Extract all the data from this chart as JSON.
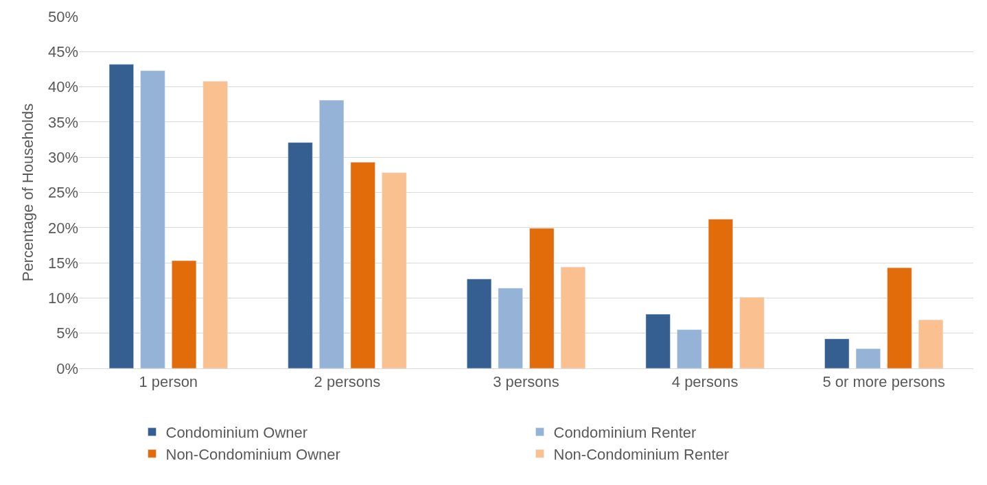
{
  "chart_data": {
    "type": "bar",
    "ylabel": "Percentage of Households",
    "categories": [
      "1 person",
      "2 persons",
      "3 persons",
      "4 persons",
      "5 or more persons"
    ],
    "series": [
      {
        "name": "Condominium Owner",
        "color": "#365f91",
        "values": [
          43.2,
          32.1,
          12.7,
          7.7,
          4.2
        ]
      },
      {
        "name": "Condominium Renter",
        "color": "#95b3d7",
        "values": [
          42.3,
          38.1,
          11.4,
          5.5,
          2.8
        ]
      },
      {
        "name": "Non-Condominium Owner",
        "color": "#e36c0a",
        "values": [
          15.3,
          29.3,
          19.9,
          21.2,
          14.3
        ]
      },
      {
        "name": "Non-Condominium Renter",
        "color": "#fac090",
        "values": [
          40.8,
          27.8,
          14.4,
          10.1,
          6.9
        ]
      }
    ],
    "ylim": [
      0,
      50
    ],
    "yticks": [
      {
        "value": 0,
        "label": "0%"
      },
      {
        "value": 5,
        "label": "5%"
      },
      {
        "value": 10,
        "label": "10%"
      },
      {
        "value": 15,
        "label": "15%"
      },
      {
        "value": 20,
        "label": "20%"
      },
      {
        "value": 25,
        "label": "25%"
      },
      {
        "value": 30,
        "label": "30%"
      },
      {
        "value": 35,
        "label": "35%"
      },
      {
        "value": 40,
        "label": "40%"
      },
      {
        "value": 45,
        "label": "45%"
      },
      {
        "value": 50,
        "label": "50%"
      }
    ],
    "grid": "y",
    "legend": "bottom"
  }
}
